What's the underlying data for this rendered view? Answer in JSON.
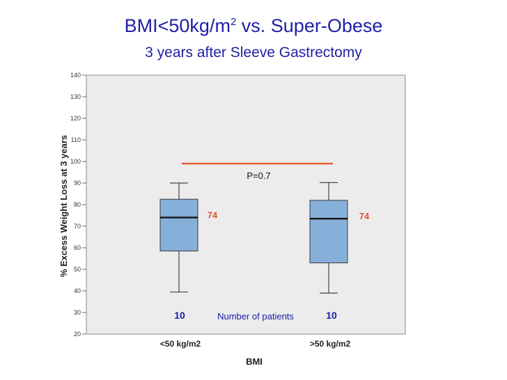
{
  "slide": {
    "title_prefix": "BMI<50kg/m",
    "title_sup": "2",
    "title_suffix": " vs. Super-Obese",
    "subtitle": "3 years after Sleeve Gastrectomy"
  },
  "chart_data": {
    "type": "boxplot",
    "xlabel": "BMI",
    "ylabel": "% Excess Weight Loss at 3 years",
    "ylim": [
      20,
      140
    ],
    "yticks": [
      20,
      30,
      40,
      50,
      60,
      70,
      80,
      90,
      100,
      110,
      120,
      130,
      140
    ],
    "categories": [
      "<50 kg/m2",
      ">50 kg/m2"
    ],
    "boxes": [
      {
        "category": "<50 kg/m2",
        "min": 39.5,
        "q1": 58.5,
        "median": 74,
        "q3": 82.5,
        "max": 90,
        "median_label": "74",
        "n_label": "10"
      },
      {
        "category": ">50 kg/m2",
        "min": 39,
        "q1": 53,
        "median": 73.5,
        "q3": 82,
        "max": 90.2,
        "median_label": "74",
        "n_label": "10"
      }
    ],
    "significance": {
      "y": 99,
      "label": "P=0.7"
    },
    "n_caption": "Number of patients",
    "colors": {
      "plot_bg": "#ececec",
      "box_fill": "#86b0da",
      "box_stroke": "#3a3a3a",
      "title": "#1f1fa6",
      "median_label": "#e8522a",
      "n_label": "#1a1aa8",
      "significance_line": "#e85a2a"
    }
  }
}
